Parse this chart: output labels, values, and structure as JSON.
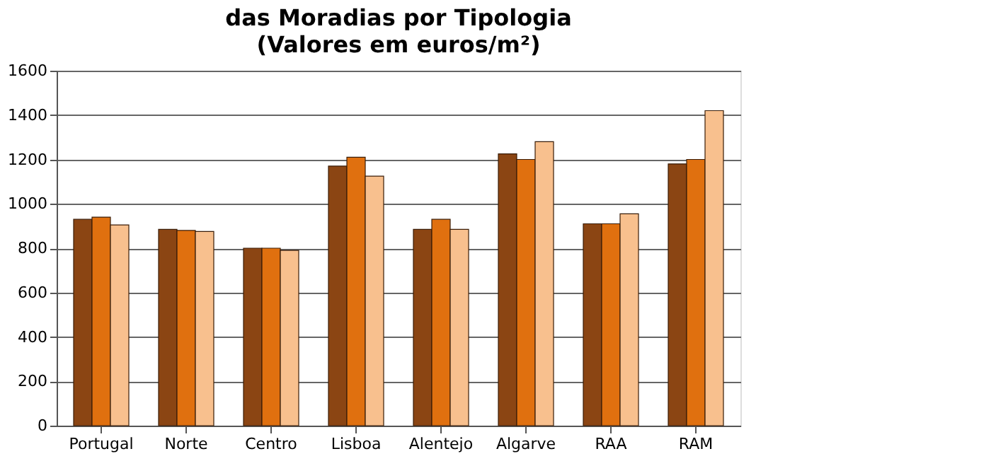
{
  "chart_data": {
    "type": "bar",
    "title": "das Moradias por Tipologia",
    "subtitle": "(Valores em euros/m²)",
    "categories": [
      "Portugal",
      "Norte",
      "Centro",
      "Lisboa",
      "Alentejo",
      "Algarve",
      "RAA",
      "RAM"
    ],
    "series": [
      {
        "color": "#8b4513",
        "values": [
          930,
          885,
          800,
          1170,
          885,
          1225,
          910,
          1180
        ]
      },
      {
        "color": "#e0700f",
        "values": [
          940,
          880,
          800,
          1210,
          930,
          1200,
          910,
          1200
        ]
      },
      {
        "color": "#f8c08e",
        "values": [
          905,
          875,
          790,
          1125,
          885,
          1280,
          955,
          1420
        ]
      }
    ],
    "ylim": [
      0,
      1600
    ],
    "yticks": [
      0,
      200,
      400,
      600,
      800,
      1000,
      1200,
      1400,
      1600
    ],
    "grid": "y",
    "legend": false
  }
}
